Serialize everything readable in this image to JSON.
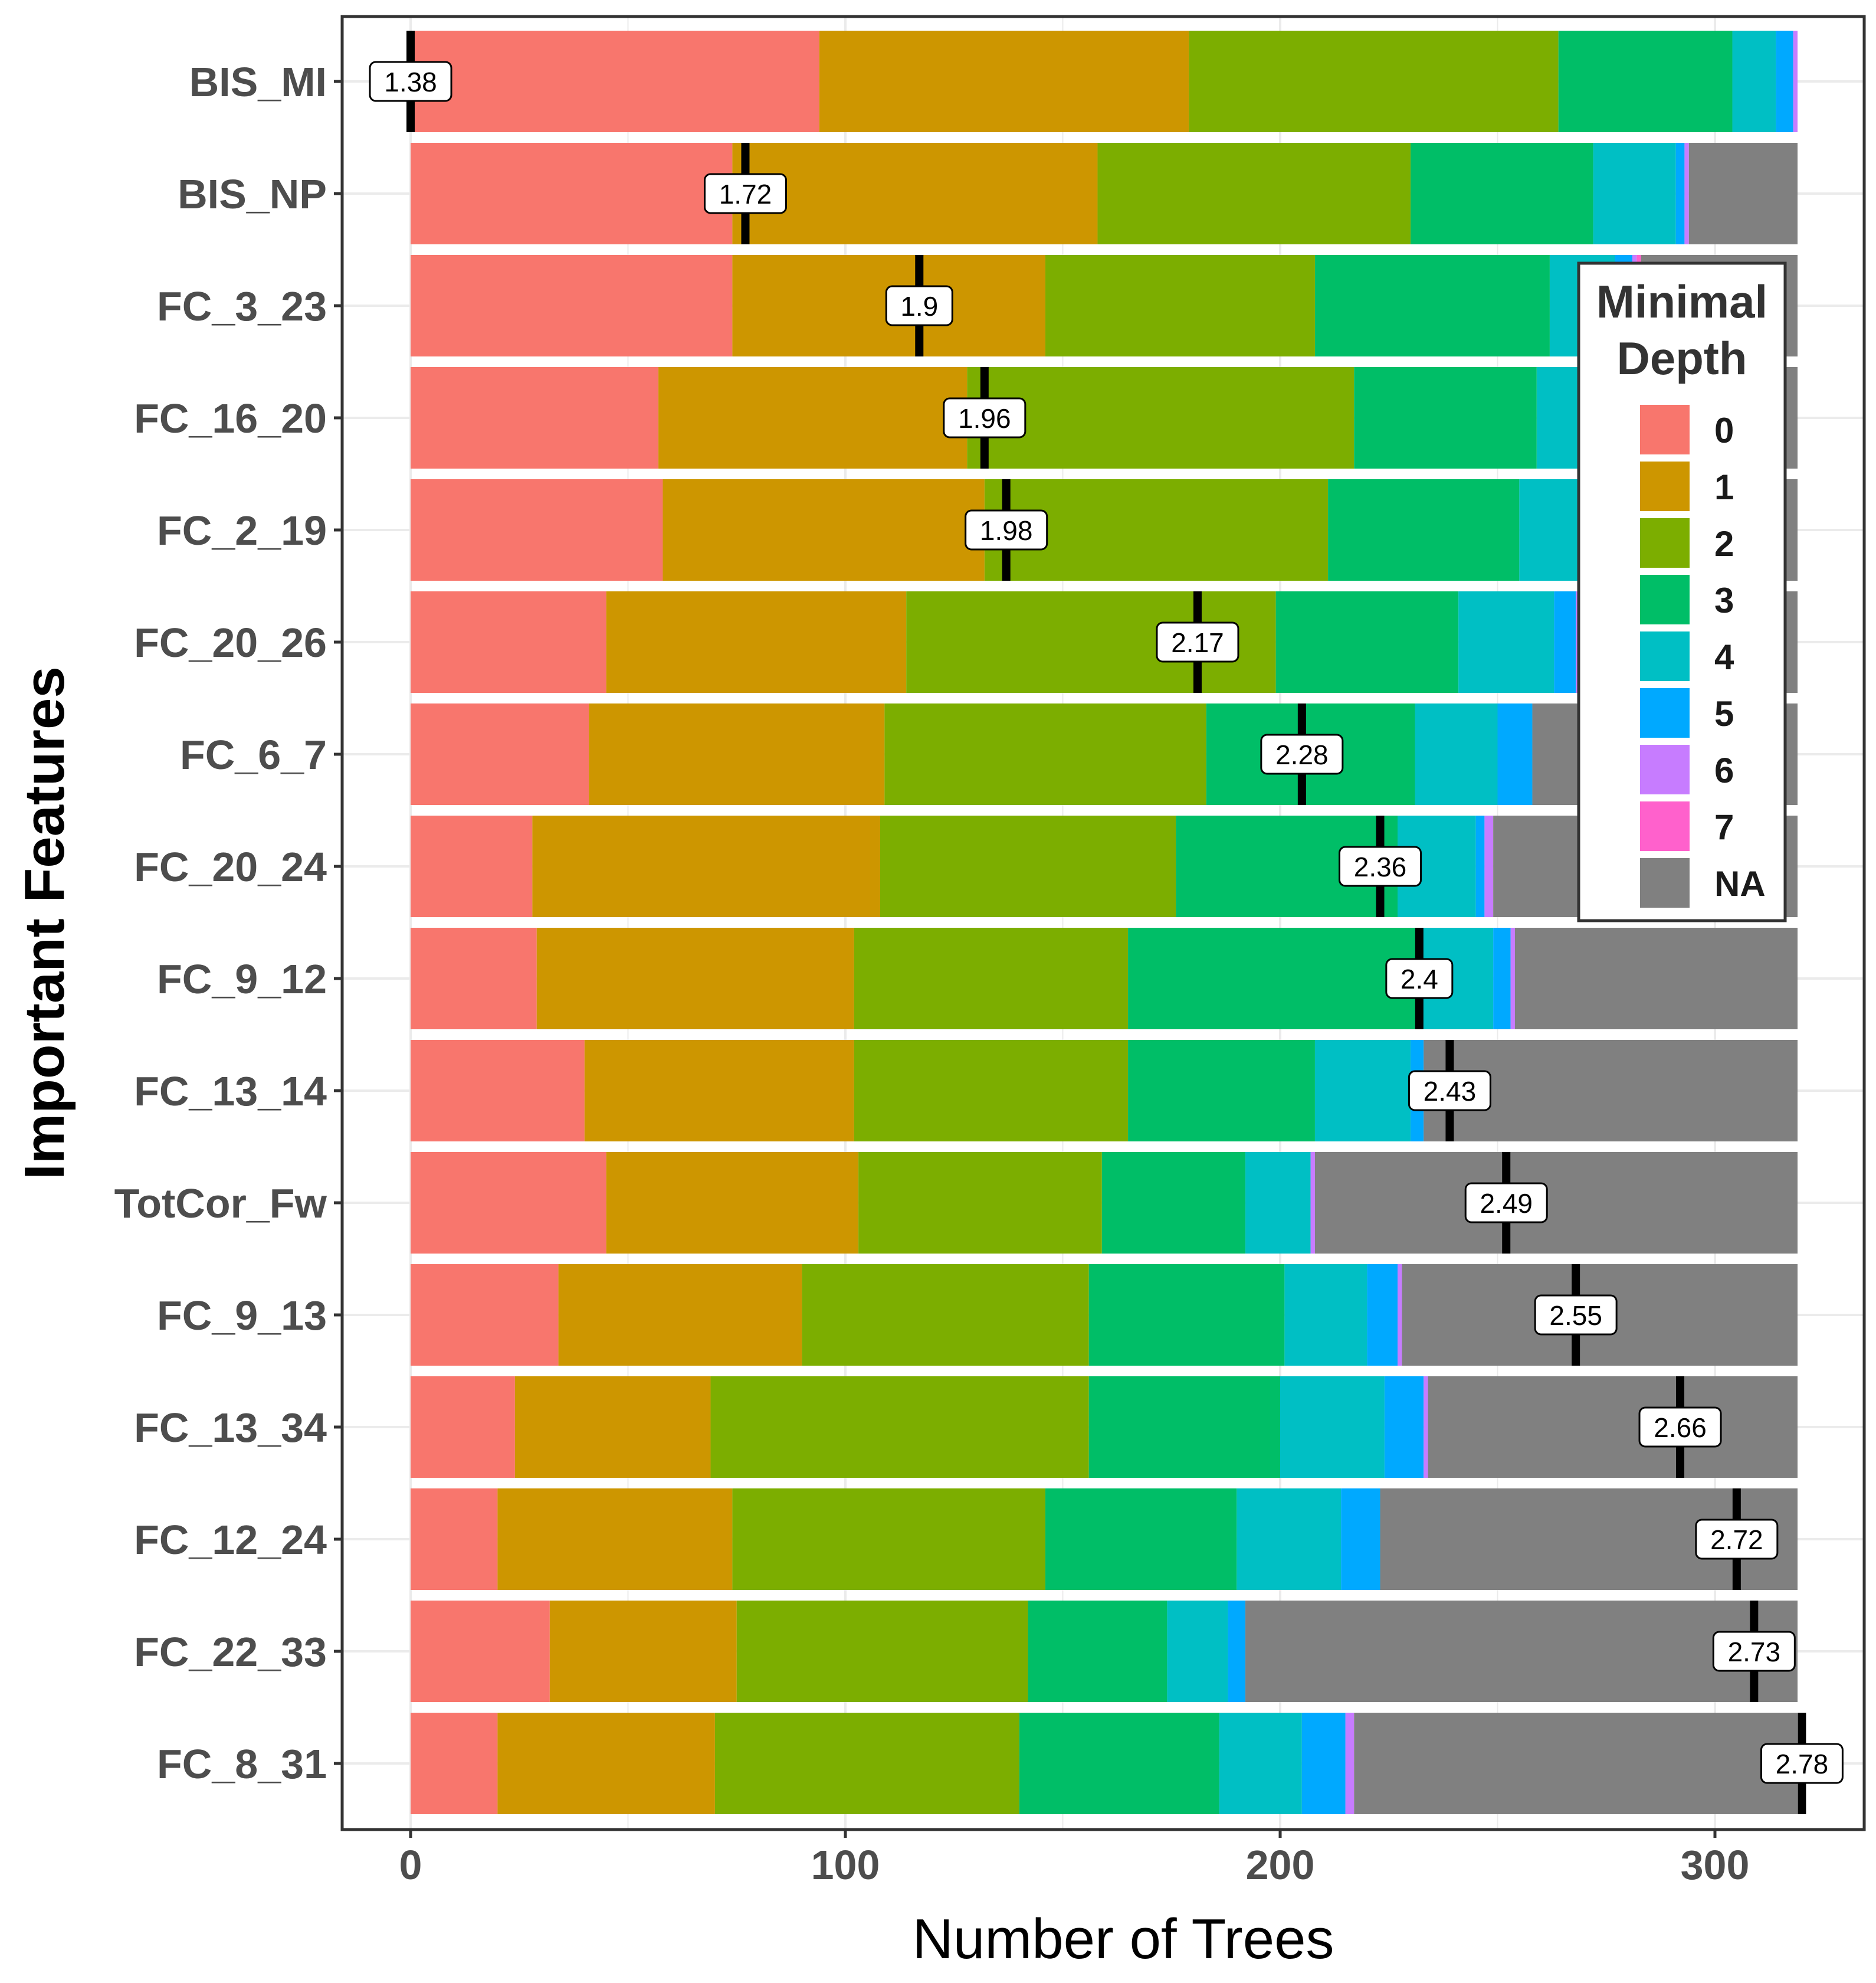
{
  "chart_data": {
    "type": "bar",
    "orientation": "horizontal",
    "stacked": true,
    "xlabel": "Number of Trees",
    "ylabel": "Important Features",
    "xlim": [
      -16,
      336
    ],
    "xticks": [
      0,
      100,
      200,
      300
    ],
    "grid": true,
    "legend": {
      "title_lines": [
        "Minimal",
        "Depth"
      ],
      "placement": "top-right-inside",
      "entries": [
        {
          "label": "0",
          "color": "#F8766D"
        },
        {
          "label": "1",
          "color": "#CD9600"
        },
        {
          "label": "2",
          "color": "#7CAE00"
        },
        {
          "label": "3",
          "color": "#00BE67"
        },
        {
          "label": "4",
          "color": "#00BFC4"
        },
        {
          "label": "5",
          "color": "#00A9FF"
        },
        {
          "label": "6",
          "color": "#C77CFF"
        },
        {
          "label": "7",
          "color": "#FF61CC"
        },
        {
          "label": "NA",
          "color": "#808080"
        }
      ]
    },
    "depth_keys": [
      "0",
      "1",
      "2",
      "3",
      "4",
      "5",
      "6",
      "7",
      "NA"
    ],
    "rows": [
      {
        "feature": "BIS_MI",
        "mean": 1.38,
        "mean_x": 0,
        "counts": [
          94,
          85,
          85,
          40,
          10,
          4,
          1,
          0,
          0
        ]
      },
      {
        "feature": "BIS_NP",
        "mean": 1.72,
        "mean_x": 77,
        "counts": [
          74,
          84,
          72,
          42,
          19,
          2,
          1,
          0,
          25
        ]
      },
      {
        "feature": "FC_3_23",
        "mean": 1.9,
        "mean_x": 117,
        "counts": [
          74,
          72,
          62,
          54,
          15,
          4,
          1,
          1,
          36
        ]
      },
      {
        "feature": "FC_16_20",
        "mean": 1.96,
        "mean_x": 132,
        "counts": [
          57,
          71,
          89,
          42,
          17,
          4,
          2,
          1,
          36
        ]
      },
      {
        "feature": "FC_2_19",
        "mean": 1.98,
        "mean_x": 137,
        "counts": [
          58,
          74,
          79,
          44,
          19,
          5,
          2,
          1,
          37
        ]
      },
      {
        "feature": "FC_20_26",
        "mean": 2.17,
        "mean_x": 181,
        "counts": [
          45,
          69,
          85,
          42,
          22,
          5,
          2,
          1,
          48
        ]
      },
      {
        "feature": "FC_6_7",
        "mean": 2.28,
        "mean_x": 205,
        "counts": [
          41,
          68,
          74,
          48,
          19,
          8,
          0,
          0,
          61
        ]
      },
      {
        "feature": "FC_20_24",
        "mean": 2.36,
        "mean_x": 223,
        "counts": [
          28,
          80,
          68,
          51,
          18,
          2,
          2,
          0,
          70
        ]
      },
      {
        "feature": "FC_9_12",
        "mean": 2.4,
        "mean_x": 232,
        "counts": [
          29,
          73,
          63,
          67,
          17,
          4,
          1,
          0,
          65
        ]
      },
      {
        "feature": "FC_13_14",
        "mean": 2.43,
        "mean_x": 239,
        "counts": [
          40,
          62,
          63,
          43,
          22,
          3,
          0,
          0,
          86
        ]
      },
      {
        "feature": "TotCor_Fw",
        "mean": 2.49,
        "mean_x": 252,
        "counts": [
          45,
          58,
          56,
          33,
          15,
          0,
          1,
          0,
          111
        ]
      },
      {
        "feature": "FC_9_13",
        "mean": 2.55,
        "mean_x": 268,
        "counts": [
          34,
          56,
          66,
          45,
          19,
          7,
          1,
          0,
          91
        ]
      },
      {
        "feature": "FC_13_34",
        "mean": 2.66,
        "mean_x": 292,
        "counts": [
          24,
          45,
          87,
          44,
          24,
          9,
          1,
          0,
          85
        ]
      },
      {
        "feature": "FC_12_24",
        "mean": 2.72,
        "mean_x": 305,
        "counts": [
          20,
          54,
          72,
          44,
          24,
          9,
          0,
          0,
          96
        ]
      },
      {
        "feature": "FC_22_33",
        "mean": 2.73,
        "mean_x": 309,
        "counts": [
          32,
          43,
          67,
          32,
          14,
          4,
          0,
          0,
          127
        ]
      },
      {
        "feature": "FC_8_31",
        "mean": 2.78,
        "mean_x": 320,
        "counts": [
          20,
          50,
          70,
          46,
          19,
          10,
          2,
          0,
          102
        ]
      }
    ]
  }
}
